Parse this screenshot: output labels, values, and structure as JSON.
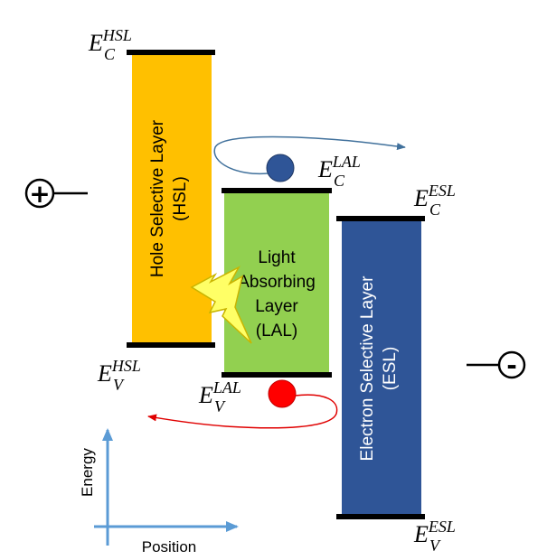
{
  "layers": {
    "hsl": {
      "line1": "Hole Selective Layer",
      "line2": "(HSL)",
      "color": "#FFC000"
    },
    "lal": {
      "line1": "Light",
      "line2": "Absorbing",
      "line3": "Layer",
      "line4": "(LAL)",
      "color": "#92D050"
    },
    "esl": {
      "line1": "Electron Selective Layer",
      "line2": "(ESL)",
      "color": "#2F5597"
    }
  },
  "energy_levels": {
    "ec_hsl": {
      "base": "E",
      "sub": "C",
      "sup": "HSL"
    },
    "ev_hsl": {
      "base": "E",
      "sub": "V",
      "sup": "HSL"
    },
    "ec_lal": {
      "base": "E",
      "sub": "C",
      "sup": "LAL"
    },
    "ev_lal": {
      "base": "E",
      "sub": "V",
      "sup": "LAL"
    },
    "ec_esl": {
      "base": "E",
      "sub": "C",
      "sup": "ESL"
    },
    "ev_esl": {
      "base": "E",
      "sub": "V",
      "sup": "ESL"
    }
  },
  "terminals": {
    "positive": "+",
    "negative": "-"
  },
  "carriers": {
    "electron_color": "#2F5597",
    "hole_color": "#FF0000",
    "electron_arrow_color": "#41719C",
    "hole_arrow_color": "#E00000"
  },
  "axes": {
    "y_label": "Energy",
    "x_label": "Position",
    "color": "#5B9BD5"
  },
  "light": {
    "icon": "lightning-bolt-icon",
    "color": "#FFFF66"
  }
}
